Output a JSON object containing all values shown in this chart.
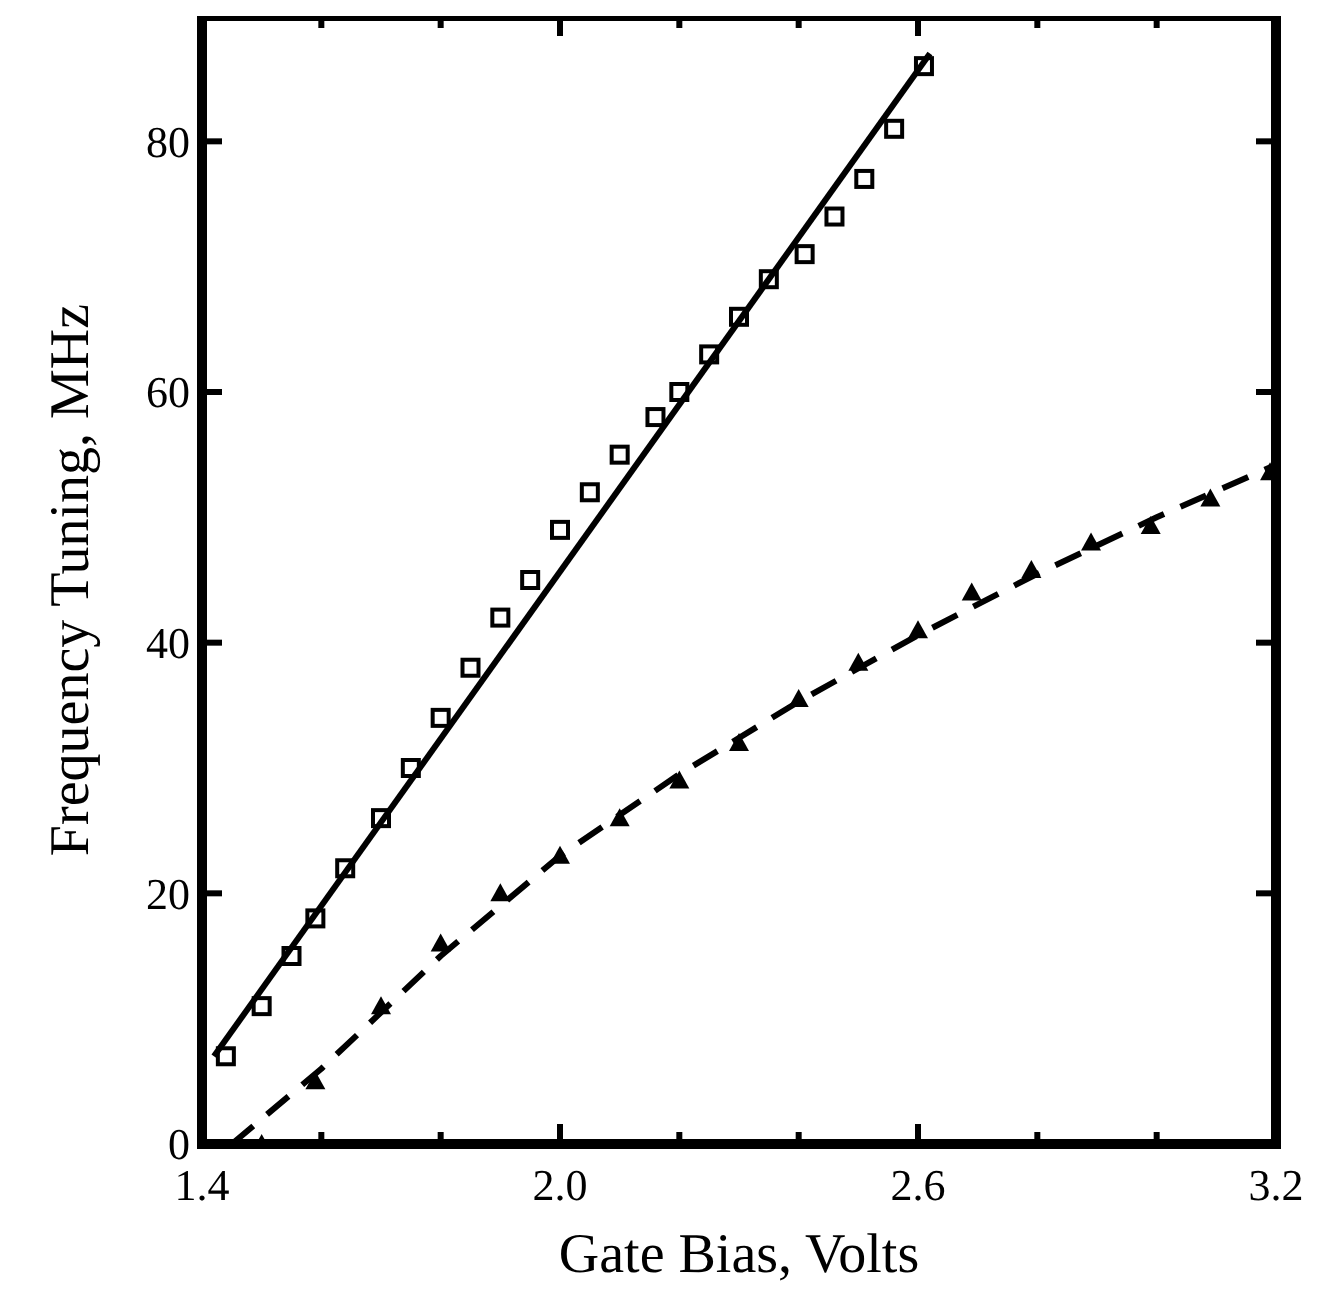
{
  "chart_data": {
    "type": "scatter",
    "xlabel": "Gate Bias, Volts",
    "ylabel": "Frequency Tuning, MHz",
    "xlim": [
      1.4,
      3.2
    ],
    "ylim": [
      0,
      90
    ],
    "xticks": [
      1.4,
      {
        "value": 1.6,
        "label": null
      },
      {
        "value": 1.8,
        "label": null
      },
      {
        "value": 2,
        "label": "2.0"
      },
      {
        "value": 2.2,
        "label": null
      },
      {
        "value": 2.4,
        "label": null
      },
      2.6,
      {
        "value": 2.8,
        "label": null
      },
      {
        "value": 3.0,
        "label": null
      },
      3.2
    ],
    "yticks": [
      0,
      20,
      40,
      60,
      80
    ],
    "grid": false,
    "series": [
      {
        "marker": "square",
        "color": "#000000",
        "x": [
          1.44,
          1.5,
          1.55,
          1.59,
          1.64,
          1.7,
          1.75,
          1.8,
          1.85,
          1.9,
          1.95,
          2.0,
          2.05,
          2.1,
          2.16,
          2.2,
          2.25,
          2.3,
          2.35,
          2.41,
          2.46,
          2.51,
          2.56,
          2.61
        ],
        "values": [
          7,
          11,
          15,
          18,
          22,
          26,
          30,
          34,
          38,
          42,
          45,
          49,
          52,
          55,
          58,
          60,
          63,
          66,
          69,
          71,
          74,
          77,
          81,
          86
        ]
      },
      {
        "type": "line",
        "line_style": "solid",
        "color": "#000000",
        "x": [
          1.42,
          2.62
        ],
        "values": [
          7,
          87
        ]
      },
      {
        "marker": "triangle",
        "color": "#000000",
        "x": [
          1.5,
          1.59,
          1.7,
          1.8,
          1.9,
          2.0,
          2.1,
          2.2,
          2.3,
          2.4,
          2.5,
          2.6,
          2.69,
          2.79,
          2.89,
          2.99,
          3.09,
          3.19
        ],
        "values": [
          0,
          5,
          11,
          16,
          20,
          23,
          26,
          29,
          32,
          35.5,
          38.4,
          41,
          44,
          45.8,
          48,
          49.3,
          51.5,
          53.6
        ]
      },
      {
        "type": "line",
        "line_style": "dashed",
        "color": "#000000",
        "x": [
          1.45,
          1.6,
          1.8,
          2.0,
          2.2,
          2.4,
          2.6,
          2.8,
          3.0,
          3.2
        ],
        "values": [
          0,
          6,
          15,
          23,
          29.5,
          35.3,
          40.6,
          45.5,
          50,
          54.2
        ]
      }
    ]
  }
}
